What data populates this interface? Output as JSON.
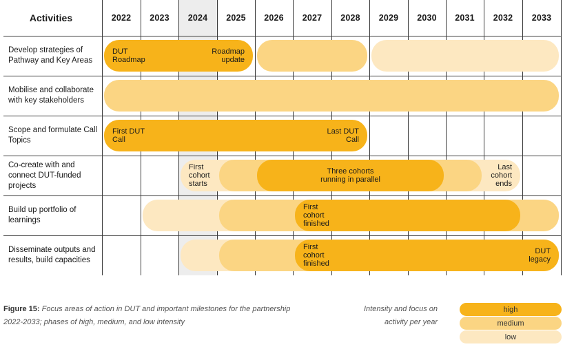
{
  "header": {
    "activities_label": "Activities",
    "years": [
      "2022",
      "2023",
      "2024",
      "2025",
      "2026",
      "2027",
      "2028",
      "2029",
      "2030",
      "2031",
      "2032",
      "2033"
    ],
    "highlighted_year": "2024"
  },
  "rows": [
    {
      "label": "Develop strategies of Pathway and Key Areas",
      "bars": [
        {
          "start": "2022",
          "end": "2025",
          "intensity": "high",
          "texts": [
            {
              "text": "DUT\nRoadmap",
              "align": "left"
            },
            {
              "text": "Roadmap\nupdate",
              "align": "right"
            }
          ]
        },
        {
          "start": "2026",
          "end": "2028",
          "intensity": "medium",
          "texts": []
        },
        {
          "start": "2029",
          "end": "2033",
          "intensity": "low",
          "texts": []
        }
      ]
    },
    {
      "label": "Mobilise and collaborate with key stakeholders",
      "bars": [
        {
          "start": "2022",
          "end": "2033",
          "intensity": "medium",
          "texts": []
        }
      ]
    },
    {
      "label": "Scope and formulate Call Topics",
      "bars": [
        {
          "start": "2022",
          "end": "2028",
          "intensity": "high",
          "texts": [
            {
              "text": "First DUT\nCall",
              "align": "left"
            },
            {
              "text": "Last DUT\nCall",
              "align": "right"
            }
          ]
        }
      ]
    },
    {
      "label": "Co-create with and connect DUT-funded projects",
      "bars": [
        {
          "start": "2024",
          "end": "2032",
          "intensity": "low",
          "texts": [
            {
              "text": "First\ncohort\nstarts",
              "align": "left"
            },
            {
              "text": "Last\ncohort\nends",
              "align": "right"
            }
          ]
        },
        {
          "start": "2025",
          "end": "2031",
          "intensity": "medium",
          "texts": []
        },
        {
          "start": "2026",
          "end": "2030",
          "intensity": "high",
          "texts": [
            {
              "text": "Three cohorts\nrunning in parallel",
              "align": "center"
            }
          ]
        }
      ]
    },
    {
      "label": "Build up portfolio of learnings",
      "bars": [
        {
          "start": "2023",
          "end": "2033",
          "intensity": "low",
          "texts": []
        },
        {
          "start": "2025",
          "end": "2033",
          "intensity": "medium",
          "texts": []
        },
        {
          "start": "2027",
          "end": "2032",
          "intensity": "high",
          "texts": [
            {
              "text": "First\ncohort\nfinished",
              "align": "left"
            }
          ]
        }
      ]
    },
    {
      "label": "Disseminate outputs and results, build capacities",
      "bars": [
        {
          "start": "2024",
          "end": "2033",
          "intensity": "low",
          "texts": []
        },
        {
          "start": "2025",
          "end": "2033",
          "intensity": "medium",
          "texts": []
        },
        {
          "start": "2027",
          "end": "2033",
          "intensity": "high",
          "texts": [
            {
              "text": "First\ncohort\nfinished",
              "align": "left"
            },
            {
              "text": "DUT\nlegacy",
              "align": "right"
            }
          ]
        }
      ]
    }
  ],
  "caption": {
    "figure_label": "Figure 15:",
    "text": "Focus areas of action in DUT and important milestones for the partnership 2022-2033; phases of high, medium, and low intensity"
  },
  "legend": {
    "title": "Intensity and focus on activity per year",
    "items": [
      {
        "label": "high",
        "color": "#f7b31a"
      },
      {
        "label": "medium",
        "color": "#fbd583"
      },
      {
        "label": "low",
        "color": "#fde8c1"
      }
    ]
  }
}
